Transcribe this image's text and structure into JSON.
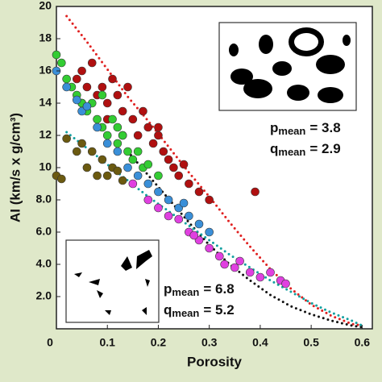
{
  "chart_data": {
    "type": "scatter",
    "xlabel": "Porosity",
    "ylabel": "AI (km/s x g/cm³)",
    "xlim": [
      0,
      0.62
    ],
    "ylim": [
      0,
      20
    ],
    "xticks": [
      0,
      0.1,
      0.2,
      0.3,
      0.4,
      0.5,
      0.6
    ],
    "yticks": [
      {
        "value": 2,
        "label": "2.0"
      },
      {
        "value": 4,
        "label": "4.0"
      },
      {
        "value": 6,
        "label": "6.0"
      },
      {
        "value": 8,
        "label": "8.0"
      },
      10,
      12,
      14,
      16,
      18,
      20
    ],
    "series": [
      {
        "color": "#b01010",
        "x": [
          0.04,
          0.05,
          0.06,
          0.07,
          0.08,
          0.09,
          0.1,
          0.11,
          0.12,
          0.13,
          0.14,
          0.15,
          0.16,
          0.17,
          0.18,
          0.19,
          0.2,
          0.21,
          0.22,
          0.23,
          0.24,
          0.25,
          0.26,
          0.28,
          0.3,
          0.39,
          0.05,
          0.13,
          0.2,
          0.1
        ],
        "values": [
          15.5,
          16,
          15,
          16.5,
          14.5,
          15,
          14,
          15.5,
          14.5,
          13.5,
          15,
          13,
          12,
          13.5,
          12.5,
          11.5,
          12,
          11,
          10.5,
          10,
          9.5,
          10.2,
          9,
          8.5,
          8,
          8.5,
          14,
          12,
          12.5,
          13
        ]
      },
      {
        "color": "#33cc33",
        "x": [
          0,
          0.01,
          0.02,
          0.03,
          0.04,
          0.05,
          0.06,
          0.07,
          0.08,
          0.09,
          0.1,
          0.11,
          0.12,
          0.13,
          0.14,
          0.15,
          0.16,
          0.17,
          0.18,
          0.2,
          0.09,
          0.12
        ],
        "values": [
          17,
          16.5,
          15.5,
          15,
          14.5,
          14,
          13.5,
          14,
          13,
          12.5,
          12,
          13,
          11.5,
          12,
          11,
          10.5,
          11,
          10,
          10.2,
          9.5,
          14.5,
          12.5
        ]
      },
      {
        "color": "#3a8fd8",
        "x": [
          0,
          0.02,
          0.04,
          0.05,
          0.06,
          0.08,
          0.1,
          0.12,
          0.14,
          0.16,
          0.2,
          0.22,
          0.24,
          0.26,
          0.28,
          0.3,
          0.25,
          0.18
        ],
        "values": [
          16,
          15,
          14.2,
          13.5,
          13.8,
          12.5,
          11.5,
          11,
          10,
          9.5,
          8.5,
          8,
          7.5,
          7,
          6.5,
          6,
          7.8,
          9
        ]
      },
      {
        "color": "#e040e0",
        "x": [
          0.15,
          0.18,
          0.2,
          0.22,
          0.24,
          0.26,
          0.28,
          0.3,
          0.32,
          0.33,
          0.35,
          0.38,
          0.4,
          0.42,
          0.44,
          0.45,
          0.27,
          0.36
        ],
        "values": [
          9,
          8,
          7.5,
          7,
          6.8,
          6,
          5.5,
          5,
          4.5,
          4,
          3.8,
          3.5,
          3.2,
          3.5,
          3,
          2.8,
          5.8,
          4.2
        ]
      },
      {
        "color": "#6b5a10",
        "x": [
          0,
          0.01,
          0.04,
          0.05,
          0.06,
          0.07,
          0.08,
          0.09,
          0.1,
          0.11,
          0.12,
          0.13,
          0.02
        ],
        "values": [
          9.5,
          9.3,
          11,
          11.5,
          10,
          11,
          9.5,
          10.5,
          9.5,
          10,
          9.8,
          9.2,
          11.8
        ]
      },
      {
        "type": "line",
        "color": "#e02020",
        "x": [
          0.02,
          0.06,
          0.1,
          0.14,
          0.18,
          0.22,
          0.26,
          0.3,
          0.34,
          0.38,
          0.42,
          0.46,
          0.5,
          0.54,
          0.58,
          0.6
        ],
        "values": [
          19.4,
          17.8,
          16.1,
          14.4,
          12.9,
          11.3,
          9.7,
          8.2,
          6.6,
          5.1,
          3.7,
          2.5,
          1.5,
          0.8,
          0.3,
          0.2
        ]
      },
      {
        "type": "line",
        "color": "#111111",
        "x": [
          0.14,
          0.2,
          0.26,
          0.3,
          0.34,
          0.38,
          0.42,
          0.46,
          0.5,
          0.54,
          0.58,
          0.6
        ],
        "values": [
          11,
          8.8,
          6.6,
          5.2,
          4,
          3,
          2.1,
          1.4,
          0.9,
          0.5,
          0.2,
          0.1
        ]
      },
      {
        "type": "line",
        "color": "#12a0a0",
        "x": [
          0.02,
          0.06,
          0.1,
          0.14,
          0.18,
          0.22,
          0.26,
          0.3,
          0.34,
          0.38,
          0.42,
          0.46,
          0.5,
          0.54,
          0.58,
          0.6
        ],
        "values": [
          12.2,
          11.2,
          10.2,
          9.2,
          8.2,
          7.3,
          6.4,
          5.5,
          4.6,
          3.8,
          3,
          2.3,
          1.6,
          1,
          0.5,
          0.2
        ]
      }
    ],
    "annotations": [
      {
        "symbol": "p",
        "subscript": "mean",
        "text": "= 3.8"
      },
      {
        "symbol": "q",
        "subscript": "mean",
        "text": "= 2.9"
      },
      {
        "symbol": "p",
        "subscript": "mean",
        "text": "= 6.8"
      },
      {
        "symbol": "q",
        "subscript": "mean",
        "text": "= 5.2"
      }
    ]
  }
}
